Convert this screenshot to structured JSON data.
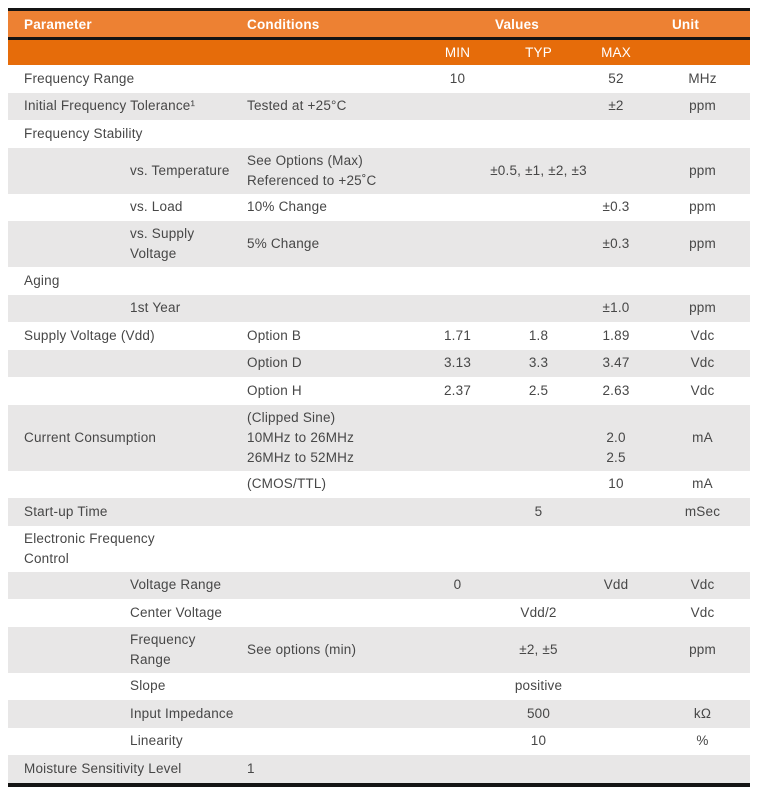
{
  "table": {
    "colors": {
      "header_top": "#ED8133",
      "header_sub": "#E66C0A",
      "shade": "#E8E7E7",
      "border": "#141414",
      "text": "#474747"
    },
    "header": {
      "parameter": "Parameter",
      "conditions": "Conditions",
      "values": "Values",
      "unit": "Unit",
      "min": "MIN",
      "typ": "TYP",
      "max": "MAX"
    },
    "rows": [
      {
        "parameter": "Frequency Range",
        "min": "10",
        "max": "52",
        "unit": "MHz"
      },
      {
        "parameter": "Initial Frequency Tolerance¹",
        "conditions": "Tested at +25°C",
        "max": "±2",
        "unit": "ppm",
        "shade": true
      },
      {
        "parameter": "Frequency Stability"
      },
      {
        "parameter": "vs. Temperature",
        "conditions": "See Options (Max)\nReferenced to +25˚C",
        "typ": "±0.5, ±1, ±2, ±3",
        "unit": "ppm",
        "shade": true,
        "indent": true
      },
      {
        "parameter": "vs. Load",
        "conditions": "10% Change",
        "max": "±0.3",
        "unit": "ppm",
        "indent": true
      },
      {
        "parameter": "vs. Supply Voltage",
        "conditions": "5% Change",
        "max": "±0.3",
        "unit": "ppm",
        "shade": true,
        "indent": true
      },
      {
        "parameter": "Aging"
      },
      {
        "parameter": "1st Year",
        "max": "±1.0",
        "unit": "ppm",
        "shade": true,
        "indent": true
      },
      {
        "parameter": "Supply Voltage (Vdd)",
        "conditions": "Option B",
        "min": "1.71",
        "typ": "1.8",
        "max": "1.89",
        "unit": "Vdc"
      },
      {
        "conditions": "Option D",
        "min": "3.13",
        "typ": "3.3",
        "max": "3.47",
        "unit": "Vdc",
        "shade": true
      },
      {
        "conditions": "Option H",
        "min": "2.37",
        "typ": "2.5",
        "max": "2.63",
        "unit": "Vdc"
      },
      {
        "parameter": "Current Consumption",
        "conditions": "(Clipped Sine)\n10MHz to 26MHz\n26MHz to 52MHz",
        "max": "\n2.0\n2.5",
        "unit": "mA",
        "shade": true
      },
      {
        "conditions": "(CMOS/TTL)",
        "max": "10",
        "unit": "mA"
      },
      {
        "parameter": "Start-up Time",
        "typ": "5",
        "unit": "mSec",
        "shade": true
      },
      {
        "parameter": "Electronic Frequency\nControl"
      },
      {
        "parameter": "Voltage Range",
        "min": "0",
        "max": "Vdd",
        "unit": "Vdc",
        "shade": true,
        "indent": true
      },
      {
        "parameter": "Center Voltage",
        "typ": "Vdd/2",
        "unit": "Vdc",
        "indent": true
      },
      {
        "parameter": "Frequency Range",
        "conditions": "See options (min)",
        "typ": "±2, ±5",
        "unit": "ppm",
        "shade": true,
        "indent": true
      },
      {
        "parameter": "Slope",
        "typ": "positive",
        "indent": true
      },
      {
        "parameter": "Input Impedance",
        "typ": "500",
        "unit": "kΩ",
        "shade": true,
        "indent": true
      },
      {
        "parameter": "Linearity",
        "typ": "10",
        "unit": "%",
        "indent": true
      },
      {
        "parameter": "Moisture Sensitivity Level",
        "conditions": "1",
        "shade": true
      }
    ]
  }
}
